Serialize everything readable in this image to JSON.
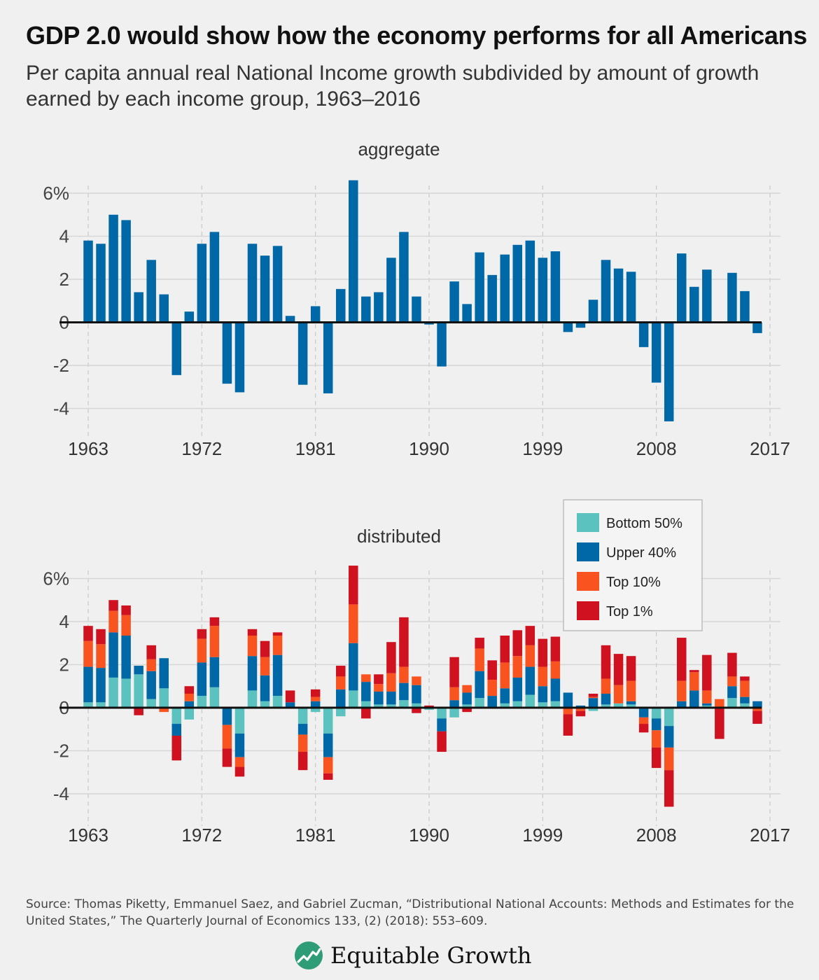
{
  "header": {
    "title": "GDP 2.0 would show how the economy performs for all Americans",
    "subtitle": "Per capita annual real National Income growth subdivided by amount of growth earned by each income group, 1963–2016"
  },
  "chart_data": [
    {
      "type": "bar",
      "title": "aggregate",
      "x": [
        1963,
        1964,
        1965,
        1966,
        1967,
        1968,
        1969,
        1970,
        1971,
        1972,
        1973,
        1974,
        1975,
        1976,
        1977,
        1978,
        1979,
        1980,
        1981,
        1982,
        1983,
        1984,
        1985,
        1986,
        1987,
        1988,
        1989,
        1990,
        1991,
        1992,
        1993,
        1994,
        1995,
        1996,
        1997,
        1998,
        1999,
        2000,
        2001,
        2002,
        2003,
        2004,
        2005,
        2006,
        2007,
        2008,
        2009,
        2010,
        2011,
        2012,
        2013,
        2014,
        2015,
        2016
      ],
      "values": [
        3.8,
        3.65,
        5.0,
        4.75,
        1.4,
        2.9,
        1.3,
        -2.45,
        0.5,
        3.65,
        4.2,
        -2.85,
        -3.25,
        3.65,
        3.1,
        3.55,
        0.3,
        -2.9,
        0.75,
        -3.3,
        1.55,
        6.6,
        1.2,
        1.4,
        3.0,
        4.2,
        1.2,
        -0.1,
        -2.05,
        1.9,
        0.85,
        3.25,
        2.2,
        3.15,
        3.6,
        3.8,
        3.0,
        3.3,
        -0.45,
        -0.25,
        1.05,
        2.9,
        2.5,
        2.35,
        -1.15,
        -2.8,
        -4.6,
        3.2,
        1.65,
        2.45,
        0.0,
        2.3,
        1.45,
        -0.5
      ],
      "xticks": [
        "1963",
        "1972",
        "1981",
        "1990",
        "1999",
        "2008",
        "2017"
      ],
      "yticks": [
        "6%",
        "4",
        "2",
        "0",
        "-2",
        "-4"
      ],
      "ylim": [
        -4.6,
        6.6
      ],
      "colors": {
        "bar": "#0068a6"
      }
    },
    {
      "type": "bar",
      "title": "distributed",
      "x": [
        1963,
        1964,
        1965,
        1966,
        1967,
        1968,
        1969,
        1970,
        1971,
        1972,
        1973,
        1974,
        1975,
        1976,
        1977,
        1978,
        1979,
        1980,
        1981,
        1982,
        1983,
        1984,
        1985,
        1986,
        1987,
        1988,
        1989,
        1990,
        1991,
        1992,
        1993,
        1994,
        1995,
        1996,
        1997,
        1998,
        1999,
        2000,
        2001,
        2002,
        2003,
        2004,
        2005,
        2006,
        2007,
        2008,
        2009,
        2010,
        2011,
        2012,
        2013,
        2014,
        2015,
        2016
      ],
      "series": [
        {
          "name": "Bottom 50%",
          "color": "#5bc2c0",
          "values": [
            0.25,
            0.25,
            1.4,
            1.35,
            1.55,
            0.4,
            0.9,
            -0.75,
            -0.55,
            0.55,
            0.95,
            0,
            -1.2,
            0.8,
            0.3,
            0.55,
            0,
            -0.75,
            -0.2,
            -1.2,
            -0.4,
            0.8,
            0.3,
            0.15,
            0.15,
            0.35,
            0.2,
            -0.1,
            -0.5,
            -0.45,
            0.15,
            0.45,
            0.05,
            0.2,
            0.3,
            0.6,
            0.25,
            0.3,
            0,
            0,
            -0.15,
            0.15,
            0.2,
            0.15,
            -0.05,
            -0.5,
            -0.85,
            0,
            -0.05,
            0.1,
            0,
            0.45,
            0.2,
            0
          ]
        },
        {
          "name": "Upper 40%",
          "color": "#0068a6",
          "values": [
            1.65,
            1.6,
            2.1,
            2.0,
            0.4,
            1.3,
            1.4,
            -0.55,
            0.3,
            1.55,
            1.4,
            -0.8,
            -1.1,
            1.6,
            1.2,
            1.9,
            0.25,
            -0.5,
            0.3,
            -1.1,
            0.85,
            2.2,
            0.9,
            0.6,
            0.6,
            0.8,
            0.85,
            0,
            -0.6,
            0.35,
            0.55,
            1.25,
            0.5,
            0.7,
            1.1,
            1.3,
            0.75,
            1.05,
            0.7,
            0.1,
            0.45,
            0.5,
            0,
            0.15,
            -0.4,
            -0.55,
            -1.0,
            0.3,
            0.8,
            0.1,
            0,
            0.55,
            0.3,
            0.3
          ]
        },
        {
          "name": "Top 10%",
          "color": "#f95320",
          "values": [
            1.2,
            1.1,
            1.0,
            0.95,
            0,
            0.55,
            -0.2,
            0,
            0.35,
            1.1,
            1.45,
            -1.1,
            -0.45,
            0.95,
            0.85,
            0.9,
            0,
            -0.8,
            0.2,
            -0.75,
            0.6,
            1.8,
            0.35,
            0.35,
            0.85,
            0.75,
            0.4,
            0,
            0,
            0.6,
            0.35,
            1.05,
            0.75,
            1.2,
            1.0,
            1.0,
            0.9,
            0.8,
            -0.3,
            -0.15,
            0.05,
            0.7,
            0.85,
            0.95,
            -0.3,
            -0.8,
            -1.05,
            0.95,
            0.85,
            0.6,
            0.4,
            0.45,
            0.75,
            -0.15
          ]
        },
        {
          "name": "Top 1%",
          "color": "#d0111f",
          "values": [
            0.7,
            0.7,
            0.5,
            0.45,
            -0.35,
            0.65,
            0,
            -1.15,
            0.35,
            0.45,
            0.4,
            -0.85,
            -0.45,
            0.3,
            0.75,
            0.15,
            0.55,
            -0.85,
            0.35,
            -0.3,
            0.5,
            1.8,
            -0.5,
            0.45,
            1.45,
            2.3,
            -0.25,
            0.1,
            -0.95,
            1.4,
            -0.2,
            0.5,
            0.9,
            1.25,
            1.2,
            0.9,
            1.3,
            1.15,
            -1.0,
            -0.25,
            0.15,
            1.55,
            1.45,
            1.15,
            -0.4,
            -0.95,
            -1.7,
            2.0,
            0.1,
            1.65,
            -1.45,
            1.1,
            0.2,
            -0.6
          ]
        }
      ],
      "xticks": [
        "1963",
        "1972",
        "1981",
        "1990",
        "1999",
        "2008",
        "2017"
      ],
      "yticks": [
        "6%",
        "4",
        "2",
        "0",
        "-2",
        "-4"
      ],
      "ylim": [
        -4.6,
        6.6
      ],
      "legend": {
        "position": "top-right",
        "items": [
          "Bottom 50%",
          "Upper 40%",
          "Top 10%",
          "Top 1%"
        ]
      }
    }
  ],
  "footer": {
    "source": "Source: Thomas Piketty, Emmanuel Saez, and Gabriel Zucman, “Distributional National Accounts: Methods and Estimates for the United States,” The Quarterly Journal of Economics 133, (2) (2018): 553–609.",
    "brand": "Equitable Growth",
    "brand_icon": "growth-chart-logo-icon",
    "brand_color": "#2e9c76"
  }
}
